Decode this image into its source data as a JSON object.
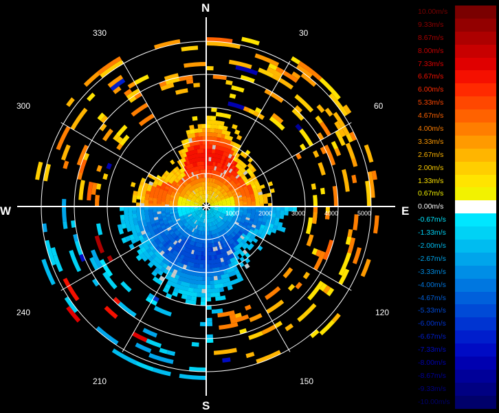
{
  "compass": {
    "n": "N",
    "e": "E",
    "s": "S",
    "w": "W"
  },
  "angles": {
    "a30": "30",
    "a60": "60",
    "a120": "120",
    "a150": "150",
    "a210": "210",
    "a240": "240",
    "a300": "300",
    "a330": "330"
  },
  "ranges": [
    "1000",
    "2000",
    "3000",
    "4000",
    "5000"
  ],
  "legend": [
    {
      "label": "10.00m/s",
      "color": "#7a0000"
    },
    {
      "label": "9.33m/s",
      "color": "#930000"
    },
    {
      "label": "8.67m/s",
      "color": "#ad0000"
    },
    {
      "label": "8.00m/s",
      "color": "#c80000"
    },
    {
      "label": "7.33m/s",
      "color": "#e00000"
    },
    {
      "label": "6.67m/s",
      "color": "#f51000"
    },
    {
      "label": "6.00m/s",
      "color": "#ff2a00"
    },
    {
      "label": "5.33m/s",
      "color": "#ff4700"
    },
    {
      "label": "4.67m/s",
      "color": "#ff6200"
    },
    {
      "label": "4.00m/s",
      "color": "#ff7e00"
    },
    {
      "label": "3.33m/s",
      "color": "#ff9a00"
    },
    {
      "label": "2.67m/s",
      "color": "#ffb500"
    },
    {
      "label": "2.00m/s",
      "color": "#ffce00"
    },
    {
      "label": "1.33m/s",
      "color": "#ffe400"
    },
    {
      "label": "0.67m/s",
      "color": "#f2f200"
    },
    {
      "label": "0.00m/s",
      "color": "#ffffff"
    },
    {
      "label": "-0.67m/s",
      "color": "#00e6ff"
    },
    {
      "label": "-1.33m/s",
      "color": "#00d2f5"
    },
    {
      "label": "-2.00m/s",
      "color": "#00bcf0"
    },
    {
      "label": "-2.67m/s",
      "color": "#00a5eb"
    },
    {
      "label": "-3.33m/s",
      "color": "#008ee6"
    },
    {
      "label": "-4.00m/s",
      "color": "#0077e0"
    },
    {
      "label": "-4.67m/s",
      "color": "#0060db"
    },
    {
      "label": "-5.33m/s",
      "color": "#004ad6"
    },
    {
      "label": "-6.00m/s",
      "color": "#0034d1"
    },
    {
      "label": "-6.67m/s",
      "color": "#001ecc"
    },
    {
      "label": "-7.33m/s",
      "color": "#000bc4"
    },
    {
      "label": "-8.00m/s",
      "color": "#0000b0"
    },
    {
      "label": "-8.67m/s",
      "color": "#000099"
    },
    {
      "label": "-9.33m/s",
      "color": "#000082"
    },
    {
      "label": "-10.00m/s",
      "color": "#00006a"
    }
  ]
}
